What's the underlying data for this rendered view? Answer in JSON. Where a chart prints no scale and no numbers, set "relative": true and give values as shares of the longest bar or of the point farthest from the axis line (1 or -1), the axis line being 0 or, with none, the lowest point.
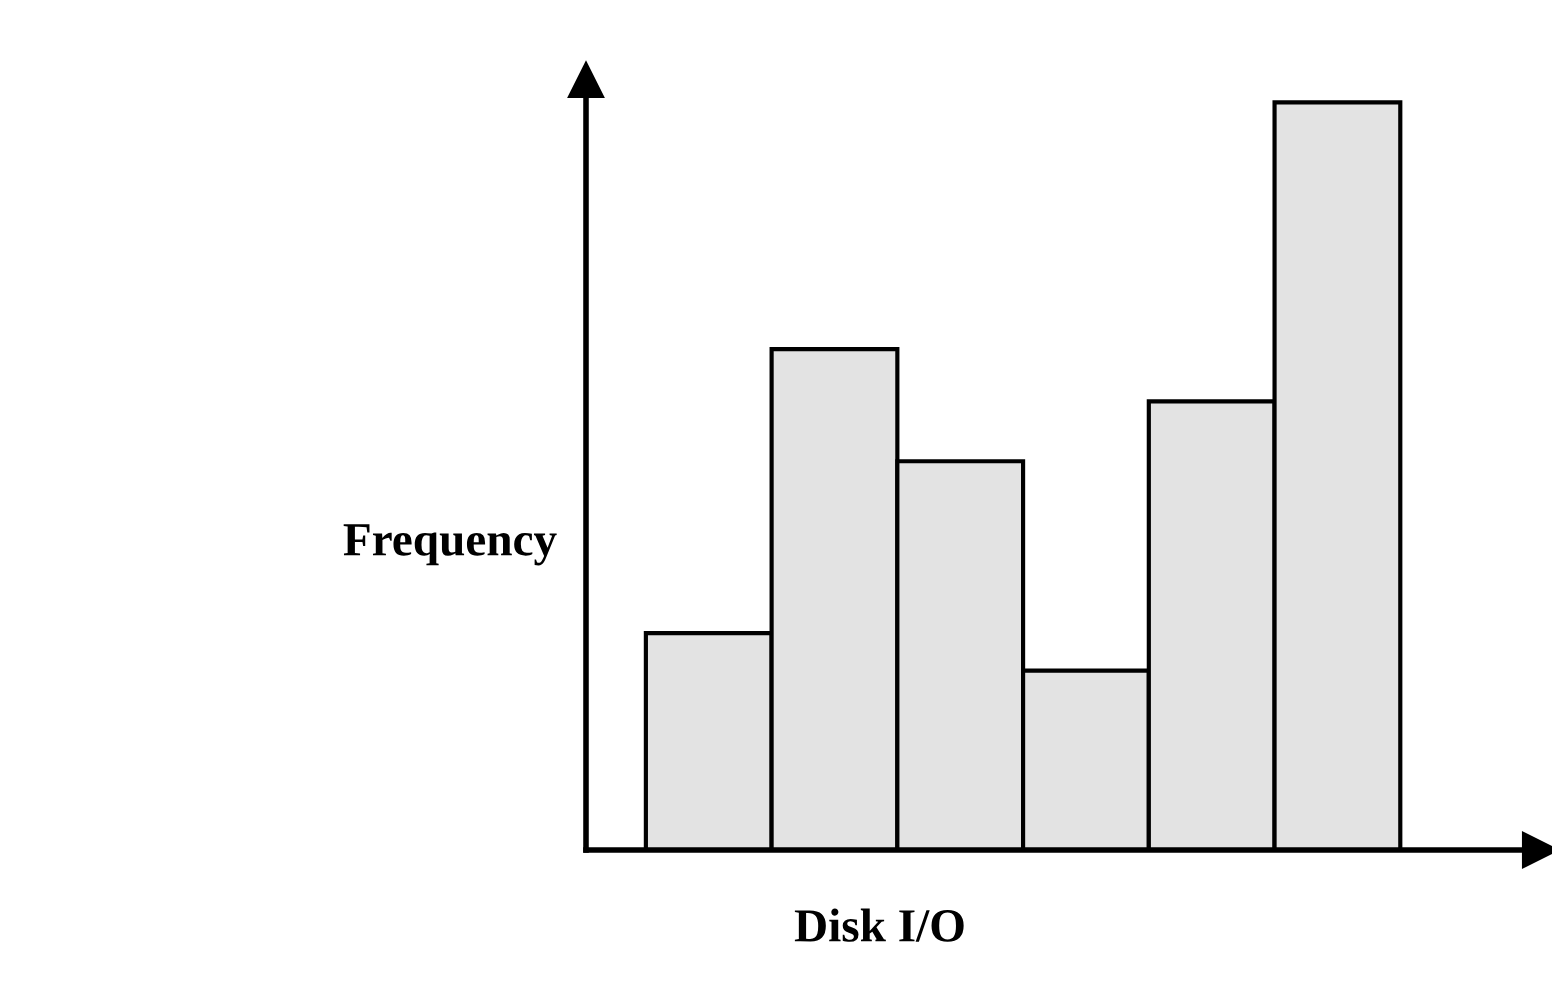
{
  "chart_data": {
    "type": "bar",
    "relative": true,
    "xlabel": "Disk I/O",
    "ylabel": "Frequency",
    "categories": [
      null,
      null,
      null,
      null,
      null,
      null
    ],
    "values": [
      0.29,
      0.67,
      0.52,
      0.24,
      0.6,
      1.0
    ],
    "color": "#e3e3e3"
  }
}
